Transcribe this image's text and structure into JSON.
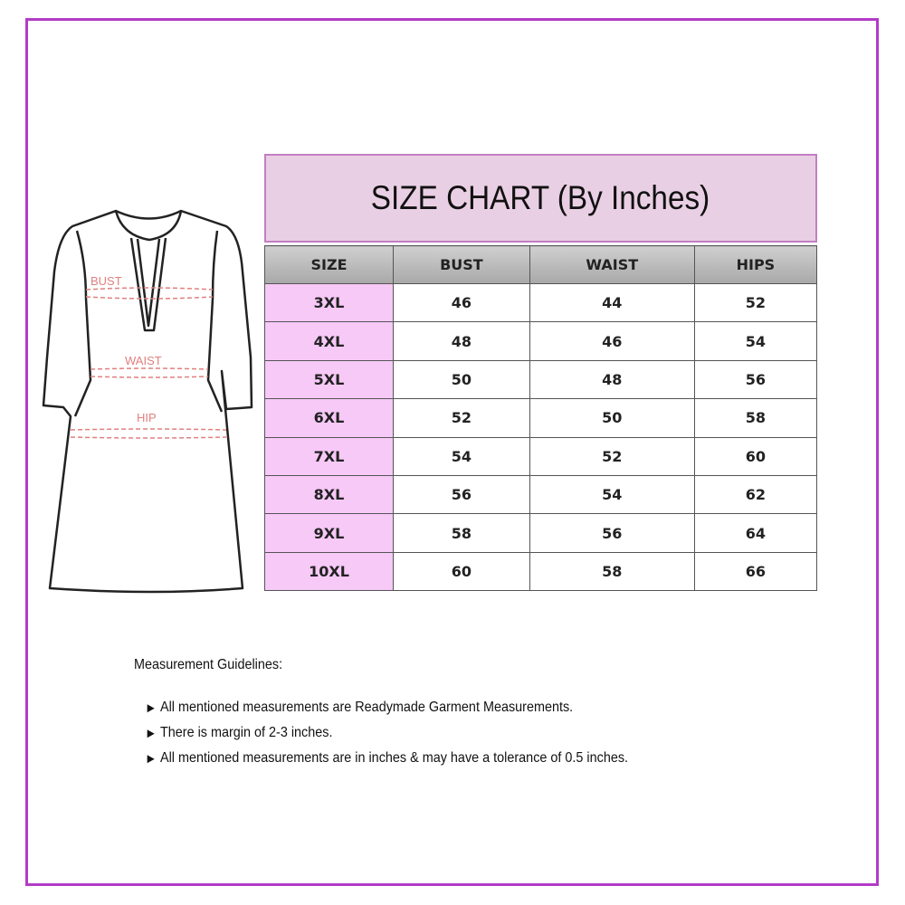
{
  "title": "SIZE CHART (By Inches)",
  "colors": {
    "frame": "#b23cc8",
    "title_bg": "#e9cfe4",
    "size_cell_bg": "#f7c9f7",
    "measure_marks": "#e08080"
  },
  "illustration": {
    "labels": [
      "BUST",
      "WAIST",
      "HIP"
    ]
  },
  "table": {
    "headers": [
      "SIZE",
      "BUST",
      "WAIST",
      "HIPS"
    ],
    "rows": [
      [
        "3XL",
        "46",
        "44",
        "52"
      ],
      [
        "4XL",
        "48",
        "46",
        "54"
      ],
      [
        "5XL",
        "50",
        "48",
        "56"
      ],
      [
        "6XL",
        "52",
        "50",
        "58"
      ],
      [
        "7XL",
        "54",
        "52",
        "60"
      ],
      [
        "8XL",
        "56",
        "54",
        "62"
      ],
      [
        "9XL",
        "58",
        "56",
        "64"
      ],
      [
        "10XL",
        "60",
        "58",
        "66"
      ]
    ]
  },
  "guidelines": {
    "heading": "Measurement Guidelines:",
    "bullet_icon": "arrow-right-icon",
    "items": [
      "All mentioned measurements are Readymade Garment Measurements.",
      "There is margin of 2-3 inches.",
      "All mentioned measurements are in inches & may have a tolerance of 0.5 inches."
    ]
  }
}
